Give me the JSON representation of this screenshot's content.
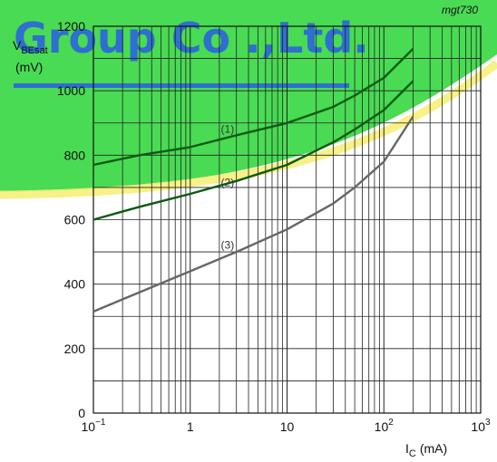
{
  "figure_id": "mgt730",
  "watermark": {
    "text": "Group Co .,Ltd.",
    "color": "#2e6fd0",
    "band_color": "#3fd94a",
    "highlight_color": "#f6f07a"
  },
  "ylabel": {
    "main": "V",
    "sub": "BEsat",
    "unit": "(mV)"
  },
  "xlabel": {
    "main": "I",
    "sub": "C",
    "unit": "(mA)"
  },
  "chart_data": {
    "type": "line",
    "x_scale": "log",
    "xlim": [
      0.1,
      1000
    ],
    "ylim": [
      0,
      1200
    ],
    "x_ticks": [
      {
        "base": "10",
        "exp": "−1",
        "value": 0.1
      },
      {
        "label": "1",
        "value": 1
      },
      {
        "label": "10",
        "value": 10
      },
      {
        "base": "10",
        "exp": "2",
        "value": 100
      },
      {
        "base": "10",
        "exp": "3",
        "value": 1000
      }
    ],
    "y_ticks": [
      0,
      200,
      400,
      600,
      800,
      1000,
      1200
    ],
    "grid": true,
    "series": [
      {
        "name": "(1)",
        "color": "#0b5a12",
        "x": [
          0.1,
          0.3,
          1,
          3,
          10,
          30,
          50,
          100,
          200
        ],
        "y": [
          770,
          800,
          825,
          862,
          900,
          950,
          985,
          1040,
          1130
        ]
      },
      {
        "name": "(2)",
        "color": "#0b5a12",
        "x": [
          0.1,
          0.3,
          1,
          3,
          10,
          30,
          50,
          100,
          200
        ],
        "y": [
          600,
          640,
          680,
          720,
          770,
          840,
          880,
          940,
          1030
        ]
      },
      {
        "name": "(3)",
        "color": "#666666",
        "x": [
          0.1,
          0.3,
          1,
          3,
          10,
          30,
          50,
          100,
          200
        ],
        "y": [
          315,
          375,
          440,
          500,
          570,
          650,
          700,
          780,
          920
        ]
      }
    ],
    "annotations": [
      {
        "text": "(1)",
        "x": 2.0,
        "y": 875
      },
      {
        "text": "(2)",
        "x": 2.0,
        "y": 710
      },
      {
        "text": "(3)",
        "x": 2.0,
        "y": 515
      }
    ]
  }
}
